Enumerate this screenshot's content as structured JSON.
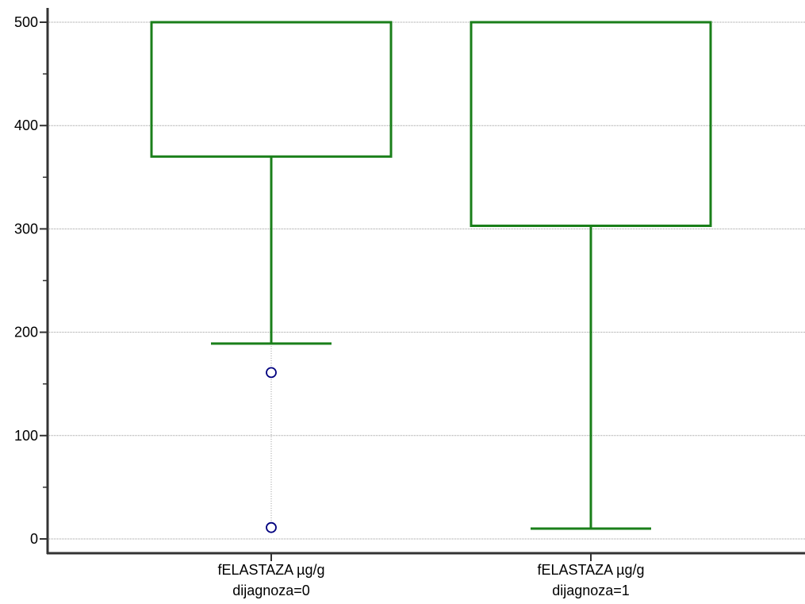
{
  "chart_data": {
    "type": "box",
    "title": "",
    "xlabel": "",
    "ylabel": "",
    "ylim": [
      0,
      500
    ],
    "yticks": [
      0,
      100,
      200,
      300,
      400,
      500
    ],
    "yticks_minor": [
      50,
      150,
      250,
      350,
      450
    ],
    "grid": true,
    "categories": [
      {
        "line1": "fELASTAZA µg/g",
        "line2": "dijagnoza=0"
      },
      {
        "line1": "fELASTAZA µg/g",
        "line2": "dijagnoza=1"
      }
    ],
    "boxes": [
      {
        "whisker_low": 189,
        "q1": 370,
        "q3": 500,
        "whisker_high": 500,
        "outliers": [
          161,
          11
        ]
      },
      {
        "whisker_low": 10,
        "q1": 303,
        "q3": 500,
        "whisker_high": 500,
        "outliers": []
      }
    ],
    "colors": {
      "box": "#1a7f1a",
      "outlier": "#00007f",
      "axis": "#333333",
      "grid": "#999999"
    }
  }
}
